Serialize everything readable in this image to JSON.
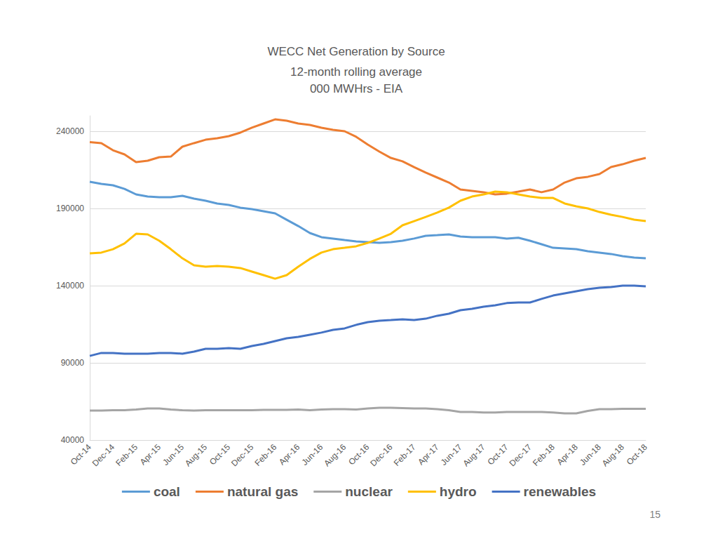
{
  "chart_data": {
    "type": "line",
    "title": "WECC Net Generation by Source",
    "subtitle": "12-month rolling average\n000 MWHrs - EIA",
    "annotations": [
      "15"
    ],
    "categories": [
      "Oct-14",
      null,
      "Dec-14",
      null,
      "Feb-15",
      null,
      "Apr-15",
      null,
      "Jun-15",
      null,
      "Aug-15",
      null,
      "Oct-15",
      null,
      "Dec-15",
      null,
      "Feb-16",
      null,
      "Apr-16",
      null,
      "Jun-16",
      null,
      "Aug-16",
      null,
      "Oct-16",
      null,
      "Dec-16",
      null,
      "Feb-17",
      null,
      "Apr-17",
      null,
      "Jun-17",
      null,
      "Aug-17",
      null,
      "Oct-17",
      null,
      "Dec-17",
      null,
      "Feb-18",
      null,
      "Apr-18",
      null,
      "Jun-18",
      null,
      "Aug-18",
      null,
      "Oct-18"
    ],
    "series": [
      {
        "name": "coal",
        "color": "#5b9bd5",
        "values": [
          207300,
          205900,
          205000,
          202700,
          199100,
          197700,
          197300,
          197300,
          198200,
          196400,
          195000,
          193200,
          192300,
          190500,
          189500,
          188200,
          186800,
          182700,
          178600,
          174100,
          171400,
          170500,
          169500,
          168600,
          168200,
          167700,
          168200,
          169100,
          170500,
          172300,
          172700,
          173200,
          171800,
          171400,
          171400,
          171400,
          170500,
          171000,
          169100,
          166800,
          164500,
          164100,
          163600,
          162300,
          161400,
          160500,
          159100,
          158200,
          157700
        ]
      },
      {
        "name": "natural gas",
        "color": "#ed7d31",
        "values": [
          233000,
          232300,
          227700,
          225000,
          220000,
          220900,
          223200,
          223600,
          230000,
          232300,
          234500,
          235500,
          236800,
          239100,
          242300,
          245000,
          247700,
          246800,
          245000,
          244100,
          242300,
          240900,
          240000,
          236400,
          231400,
          226800,
          222700,
          220500,
          216800,
          213200,
          210000,
          206800,
          202300,
          201400,
          200500,
          199100,
          199600,
          200900,
          202300,
          200500,
          202300,
          206800,
          209500,
          210500,
          212300,
          216800,
          218600,
          220900,
          222700
        ]
      },
      {
        "name": "nuclear",
        "color": "#a5a5a5",
        "values": [
          59100,
          59100,
          59300,
          59300,
          59800,
          60400,
          60400,
          59800,
          59300,
          59100,
          59300,
          59300,
          59300,
          59300,
          59300,
          59500,
          59600,
          59600,
          59800,
          59300,
          59800,
          60000,
          60000,
          59800,
          60400,
          60900,
          60900,
          60700,
          60500,
          60500,
          60000,
          59300,
          58200,
          58200,
          57800,
          57800,
          58200,
          58200,
          58200,
          58200,
          57800,
          57300,
          57300,
          58900,
          60000,
          60000,
          60200,
          60200,
          60200
        ]
      },
      {
        "name": "hydro",
        "color": "#ffc000",
        "values": [
          160900,
          161400,
          163600,
          167300,
          173600,
          173200,
          169100,
          163600,
          157700,
          153200,
          152300,
          152700,
          152300,
          151400,
          149100,
          146800,
          144500,
          146800,
          152300,
          157300,
          161400,
          163600,
          164500,
          165500,
          167700,
          170500,
          173600,
          179100,
          181800,
          184500,
          187300,
          190500,
          195000,
          197700,
          199100,
          200900,
          200500,
          199100,
          197700,
          196800,
          196800,
          193200,
          191400,
          190000,
          187700,
          185900,
          184500,
          182700,
          181800
        ]
      },
      {
        "name": "renewables",
        "color": "#4472c4",
        "values": [
          94500,
          96400,
          96400,
          95900,
          95900,
          95900,
          96400,
          96400,
          95900,
          97300,
          99100,
          99100,
          99500,
          99100,
          100900,
          102300,
          104100,
          105900,
          106800,
          108200,
          109600,
          111400,
          112300,
          114600,
          116400,
          117300,
          117700,
          118200,
          117700,
          118600,
          120500,
          121800,
          124100,
          125000,
          126400,
          127300,
          128700,
          129100,
          129100,
          131400,
          133600,
          135000,
          136400,
          137700,
          138600,
          139100,
          140000,
          140000,
          139500
        ]
      }
    ],
    "ylim": [
      40000,
      250000
    ],
    "yticks": [
      40000,
      90000,
      140000,
      190000,
      240000
    ],
    "grid": true,
    "legend": "bottom",
    "marker": "none",
    "line_style": "solid"
  }
}
